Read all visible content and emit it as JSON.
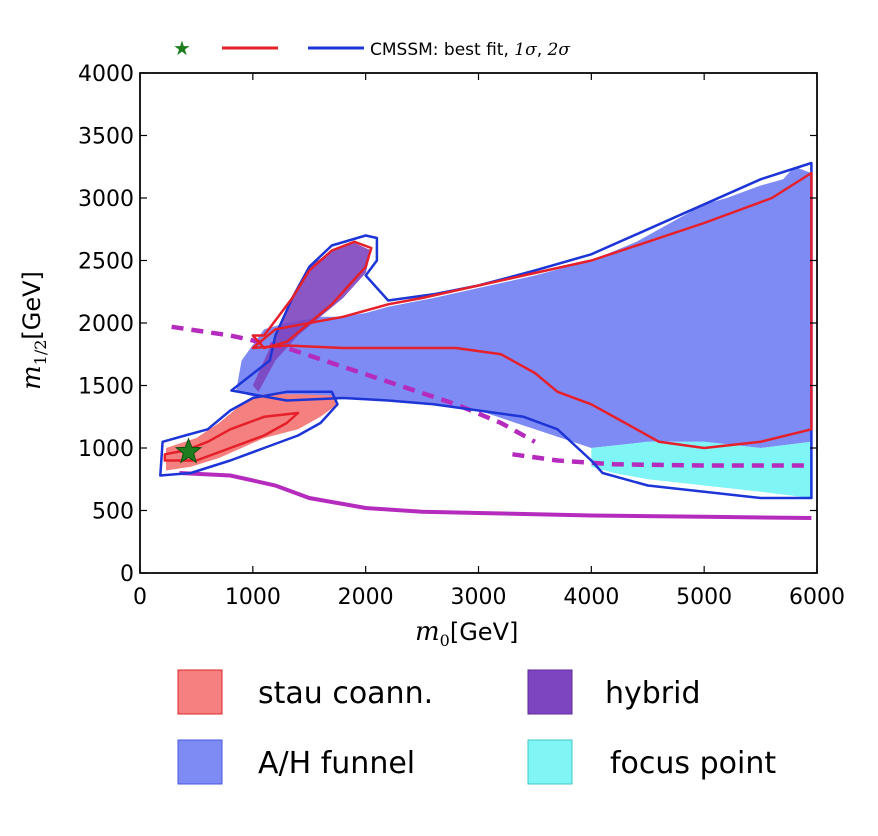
{
  "chart_data": {
    "type": "region",
    "title": "",
    "xlabel": "m_0 [GeV]",
    "xlabel_main": "m",
    "xlabel_sub": "0",
    "xlabel_unit": "[GeV]",
    "ylabel": "m_1/2 [GeV]",
    "ylabel_main": "m",
    "ylabel_sub": "1/2",
    "ylabel_unit": "[GeV]",
    "xlim": [
      0,
      6000
    ],
    "ylim": [
      0,
      4000
    ],
    "xticks": [
      0,
      1000,
      2000,
      3000,
      4000,
      5000,
      6000
    ],
    "yticks": [
      0,
      500,
      1000,
      1500,
      2000,
      2500,
      3000,
      3500,
      4000
    ],
    "colors": {
      "stau": "#f58080",
      "hybrid": "#7d45bf",
      "funnel": "#7f8bf5",
      "focus": "#80f5f5",
      "contour_2sigma": "#1d35d6",
      "contour_1sigma": "#e5202a",
      "boundary": "#b52bbd",
      "best_fit": "#1e7d1e"
    },
    "best_fit": {
      "x": 430,
      "y": 970
    },
    "top_legend": {
      "text": "CMSSM: best fit, ",
      "sigma1": "1σ",
      "separator": ", ",
      "sigma2": "2σ"
    },
    "legend": [
      {
        "label": "stau coann.",
        "color": "#f58080"
      },
      {
        "label": "hybrid",
        "color": "#7d45bf"
      },
      {
        "label": "A/H funnel",
        "color": "#7f8bf5"
      },
      {
        "label": "focus point",
        "color": "#80f5f5"
      }
    ],
    "regions": {
      "funnel": [
        [
          1050,
          1400
        ],
        [
          1300,
          1380
        ],
        [
          1800,
          1400
        ],
        [
          2200,
          1380
        ],
        [
          2600,
          1350
        ],
        [
          3000,
          1300
        ],
        [
          3500,
          1150
        ],
        [
          4000,
          1000
        ],
        [
          4500,
          1050
        ],
        [
          5000,
          1050
        ],
        [
          5500,
          1000
        ],
        [
          5950,
          1050
        ],
        [
          5950,
          3200
        ],
        [
          5800,
          3250
        ],
        [
          5700,
          3150
        ],
        [
          5500,
          3100
        ],
        [
          5200,
          3000
        ],
        [
          5000,
          2950
        ],
        [
          4700,
          2800
        ],
        [
          4400,
          2650
        ],
        [
          4000,
          2500
        ],
        [
          3500,
          2380
        ],
        [
          3000,
          2280
        ],
        [
          2600,
          2200
        ],
        [
          2200,
          2130
        ],
        [
          2000,
          2080
        ],
        [
          1800,
          2050
        ],
        [
          1600,
          2050
        ],
        [
          1300,
          2000
        ],
        [
          1100,
          1950
        ],
        [
          900,
          1700
        ],
        [
          850,
          1450
        ]
      ],
      "focus": [
        [
          4000,
          1000
        ],
        [
          4500,
          1050
        ],
        [
          5000,
          1050
        ],
        [
          5500,
          1000
        ],
        [
          5950,
          1050
        ],
        [
          5950,
          600
        ],
        [
          5500,
          650
        ],
        [
          5000,
          700
        ],
        [
          4500,
          750
        ],
        [
          4200,
          800
        ],
        [
          4000,
          850
        ]
      ],
      "stau": [
        [
          230,
          820
        ],
        [
          450,
          850
        ],
        [
          700,
          920
        ],
        [
          900,
          1000
        ],
        [
          1100,
          1080
        ],
        [
          1400,
          1150
        ],
        [
          1600,
          1250
        ],
        [
          1750,
          1350
        ],
        [
          1700,
          1420
        ],
        [
          1400,
          1430
        ],
        [
          1100,
          1430
        ],
        [
          900,
          1350
        ],
        [
          700,
          1200
        ],
        [
          500,
          1080
        ],
        [
          230,
          1000
        ]
      ],
      "hybrid": [
        [
          1000,
          1500
        ],
        [
          1100,
          1700
        ],
        [
          1200,
          1900
        ],
        [
          1300,
          2100
        ],
        [
          1400,
          2300
        ],
        [
          1500,
          2450
        ],
        [
          1700,
          2580
        ],
        [
          1900,
          2640
        ],
        [
          2050,
          2580
        ],
        [
          2000,
          2400
        ],
        [
          1800,
          2200
        ],
        [
          1600,
          2050
        ],
        [
          1400,
          1900
        ],
        [
          1200,
          1700
        ],
        [
          1050,
          1450
        ]
      ]
    },
    "contours_2sigma": [
      [
        [
          810,
          1460
        ],
        [
          1150,
          1700
        ],
        [
          1200,
          1900
        ],
        [
          1350,
          2200
        ],
        [
          1500,
          2450
        ],
        [
          1700,
          2620
        ],
        [
          2000,
          2700
        ],
        [
          2100,
          2680
        ],
        [
          2100,
          2500
        ],
        [
          2000,
          2380
        ],
        [
          2200,
          2180
        ],
        [
          2600,
          2230
        ],
        [
          3000,
          2300
        ],
        [
          3500,
          2420
        ],
        [
          4000,
          2550
        ],
        [
          4500,
          2750
        ],
        [
          5000,
          2950
        ],
        [
          5500,
          3150
        ],
        [
          5950,
          3280
        ],
        [
          5950,
          2300
        ],
        [
          5950,
          600
        ],
        [
          5500,
          600
        ],
        [
          5000,
          650
        ],
        [
          4500,
          700
        ],
        [
          4100,
          800
        ],
        [
          4000,
          900
        ],
        [
          3700,
          1150
        ],
        [
          3400,
          1250
        ],
        [
          3000,
          1300
        ],
        [
          2600,
          1350
        ],
        [
          2200,
          1380
        ],
        [
          1800,
          1400
        ],
        [
          1300,
          1380
        ],
        [
          810,
          1460
        ]
      ],
      [
        [
          180,
          780
        ],
        [
          450,
          800
        ],
        [
          800,
          900
        ],
        [
          1100,
          1000
        ],
        [
          1400,
          1100
        ],
        [
          1600,
          1200
        ],
        [
          1750,
          1350
        ],
        [
          1700,
          1450
        ],
        [
          1300,
          1450
        ],
        [
          1000,
          1400
        ],
        [
          800,
          1300
        ],
        [
          600,
          1150
        ],
        [
          400,
          1100
        ],
        [
          200,
          1050
        ],
        [
          180,
          780
        ]
      ]
    ],
    "contours_1sigma": [
      [
        [
          1100,
          1900
        ],
        [
          1350,
          2200
        ],
        [
          1500,
          2420
        ],
        [
          1700,
          2580
        ],
        [
          1900,
          2650
        ],
        [
          2050,
          2600
        ],
        [
          2000,
          2450
        ],
        [
          1850,
          2300
        ],
        [
          1700,
          2150
        ],
        [
          1500,
          2000
        ],
        [
          1300,
          1850
        ],
        [
          1100,
          1800
        ],
        [
          1000,
          1900
        ],
        [
          1100,
          1900
        ]
      ],
      [
        [
          1000,
          1800
        ],
        [
          1300,
          1820
        ],
        [
          1800,
          1800
        ],
        [
          2300,
          1800
        ],
        [
          2800,
          1800
        ],
        [
          3200,
          1750
        ],
        [
          3500,
          1600
        ],
        [
          3700,
          1450
        ],
        [
          4000,
          1350
        ],
        [
          4300,
          1200
        ],
        [
          4600,
          1050
        ],
        [
          5000,
          1000
        ],
        [
          5500,
          1050
        ],
        [
          5950,
          1150
        ],
        [
          5950,
          3200
        ],
        [
          5600,
          3000
        ],
        [
          5000,
          2800
        ],
        [
          4500,
          2650
        ],
        [
          4000,
          2500
        ],
        [
          3500,
          2400
        ],
        [
          3000,
          2300
        ],
        [
          2500,
          2200
        ],
        [
          2200,
          2150
        ],
        [
          1800,
          2050
        ],
        [
          1500,
          2000
        ],
        [
          1200,
          1950
        ],
        [
          1000,
          1800
        ]
      ],
      [
        [
          220,
          900
        ],
        [
          500,
          900
        ],
        [
          800,
          1000
        ],
        [
          1100,
          1100
        ],
        [
          1300,
          1200
        ],
        [
          1400,
          1280
        ],
        [
          1100,
          1250
        ],
        [
          800,
          1150
        ],
        [
          600,
          1050
        ],
        [
          400,
          980
        ],
        [
          220,
          950
        ],
        [
          220,
          900
        ]
      ]
    ],
    "boundary_dashed_upper": [
      [
        280,
        1970
      ],
      [
        800,
        1900
      ],
      [
        1300,
        1800
      ],
      [
        1800,
        1650
      ],
      [
        2300,
        1500
      ],
      [
        2800,
        1350
      ],
      [
        3200,
        1200
      ],
      [
        3500,
        1050
      ]
    ],
    "boundary_dashed_lower": [
      [
        3300,
        950
      ],
      [
        3700,
        900
      ],
      [
        4200,
        870
      ],
      [
        5000,
        860
      ],
      [
        5950,
        860
      ]
    ],
    "boundary_solid": [
      [
        350,
        800
      ],
      [
        800,
        780
      ],
      [
        1200,
        700
      ],
      [
        1500,
        600
      ],
      [
        2000,
        520
      ],
      [
        2500,
        490
      ],
      [
        3000,
        480
      ],
      [
        4000,
        460
      ],
      [
        5000,
        450
      ],
      [
        5950,
        440
      ]
    ]
  }
}
